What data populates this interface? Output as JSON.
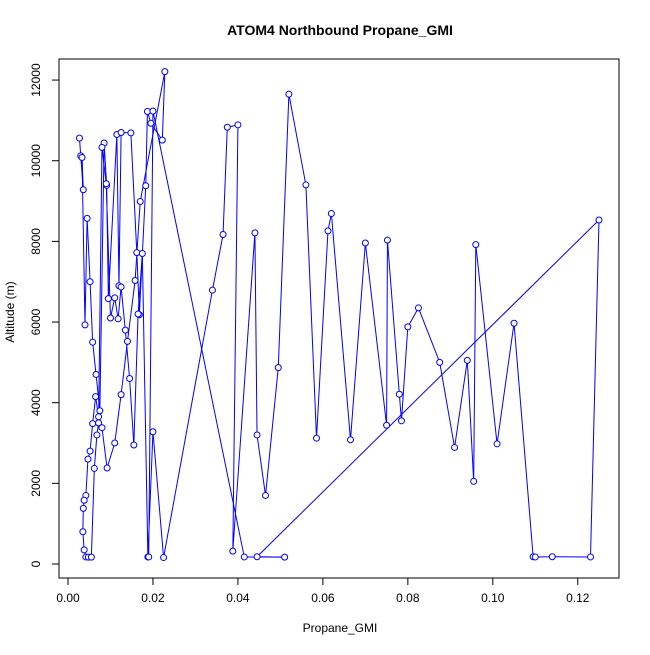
{
  "chart_data": {
    "type": "line",
    "title": "ATOM4 Northbound Propane_GMI",
    "xlabel": "Propane_GMI",
    "ylabel": "Altitude (m)",
    "xlim": [
      0,
      0.125
    ],
    "ylim": [
      0,
      12200
    ],
    "x_ticks": [
      0.0,
      0.02,
      0.04,
      0.06,
      0.08,
      0.1,
      0.12
    ],
    "x_tick_labels": [
      "0.00",
      "0.02",
      "0.04",
      "0.06",
      "0.08",
      "0.10",
      "0.12"
    ],
    "y_ticks": [
      0,
      2000,
      4000,
      6000,
      8000,
      10000,
      12000
    ],
    "y_tick_labels": [
      "0",
      "2000",
      "4000",
      "6000",
      "8000",
      "10000",
      "12000"
    ],
    "grid": false,
    "line_color": "#0000ff",
    "marker": "open-circle",
    "series": [
      {
        "x": [
          0.0027,
          0.003,
          0.0036,
          0.0033,
          0.004,
          0.0045,
          0.0052,
          0.0058,
          0.0066,
          0.0075,
          0.0085,
          0.0091,
          0.0095,
          0.0115,
          0.012,
          0.0125,
          0.0148,
          0.0162,
          0.0168,
          0.0183,
          0.0187,
          0.0195,
          0.0222,
          0.0228,
          0.017,
          0.0158,
          0.014,
          0.0125,
          0.011,
          0.0092,
          0.008,
          0.0072,
          0.0065,
          0.0058,
          0.0052,
          0.0047,
          0.0042,
          0.0038,
          0.0036,
          0.0035,
          0.0038,
          0.0042,
          0.0048,
          0.0055,
          0.0062,
          0.0068,
          0.0072,
          0.008,
          0.009,
          0.01,
          0.011,
          0.0118,
          0.0125,
          0.0135,
          0.0145,
          0.0155,
          0.0165,
          0.0175,
          0.0188,
          0.02,
          0.0225,
          0.034,
          0.0365,
          0.0375,
          0.04,
          0.0388,
          0.044,
          0.0445,
          0.0465,
          0.0495,
          0.052,
          0.056,
          0.0585,
          0.0612,
          0.062,
          0.0665,
          0.07,
          0.075,
          0.0752,
          0.078,
          0.0785,
          0.08,
          0.0825,
          0.0875,
          0.091,
          0.094,
          0.0955,
          0.096,
          0.101,
          0.105,
          0.1095,
          0.11,
          0.114,
          0.123,
          0.125,
          0.0445,
          0.051,
          0.0415,
          0.02,
          0.019
        ],
        "y": [
          10560,
          10120,
          9280,
          10080,
          5930,
          8570,
          7000,
          5500,
          4700,
          3800,
          10440,
          9390,
          6580,
          10650,
          6900,
          10700,
          10690,
          7720,
          6180,
          9380,
          11220,
          10930,
          10510,
          12210,
          8990,
          7030,
          5520,
          4200,
          3000,
          2380,
          3380,
          3650,
          4150,
          3480,
          2800,
          2600,
          1700,
          1580,
          1380,
          800,
          350,
          175,
          170,
          170,
          2370,
          3200,
          3500,
          10330,
          9430,
          6100,
          6600,
          6080,
          6870,
          5800,
          4600,
          2950,
          6200,
          7700,
          175,
          3280,
          160,
          6790,
          8170,
          10830,
          10890,
          320,
          8210,
          3200,
          1700,
          4870,
          11650,
          9400,
          3120,
          8260,
          8690,
          3080,
          7960,
          3440,
          8030,
          4210,
          3550,
          5880,
          6350,
          5000,
          2890,
          5050,
          2050,
          7920,
          2980,
          5970,
          180,
          175,
          180,
          175,
          8530,
          180,
          170,
          175,
          11230,
          175
        ]
      }
    ]
  }
}
